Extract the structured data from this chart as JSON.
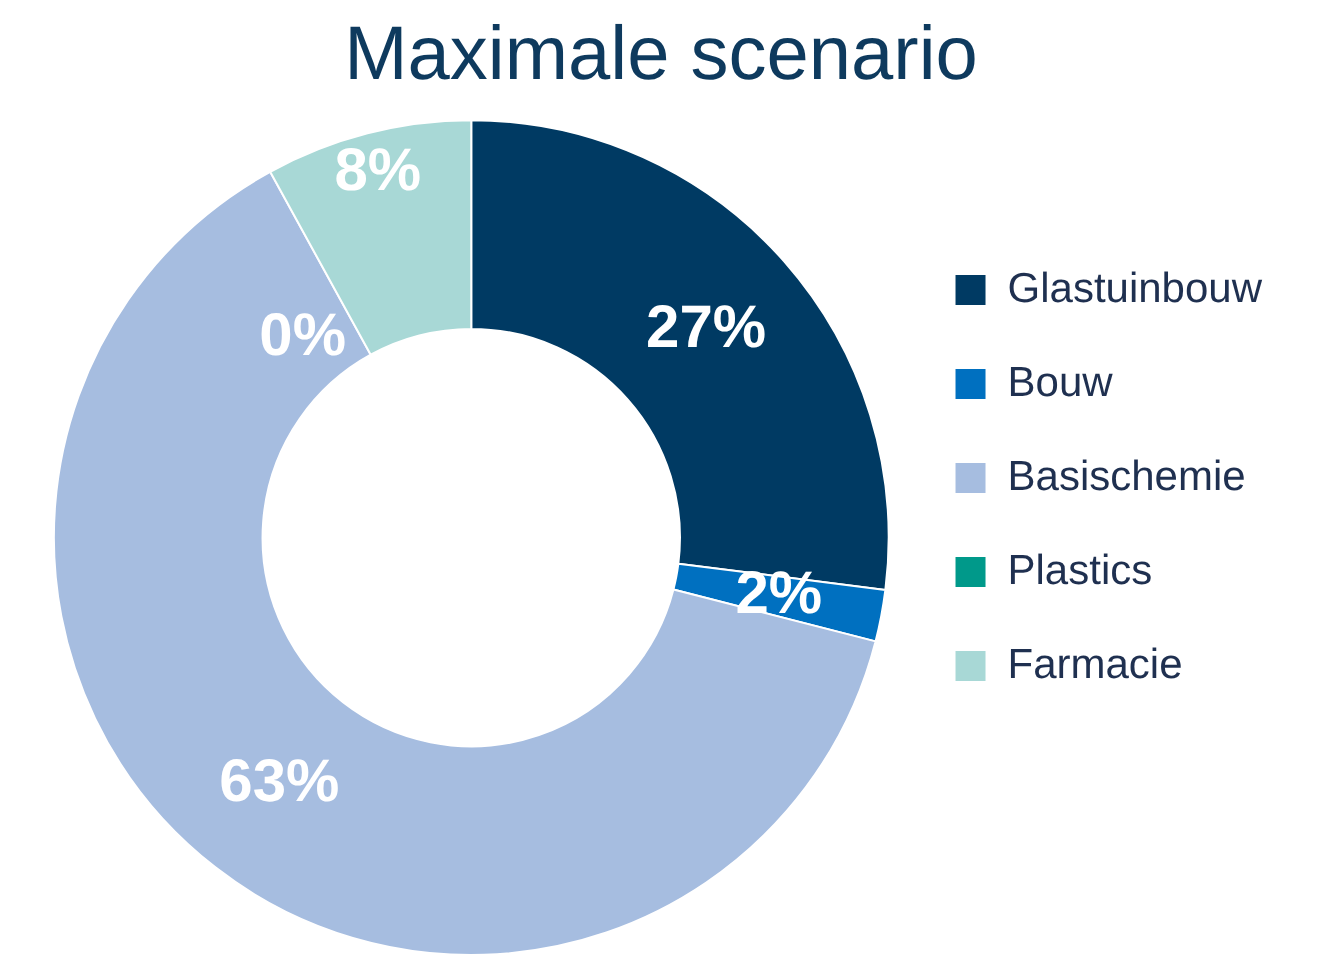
{
  "chart_data": {
    "type": "donut",
    "title": "Maximale scenario",
    "categories": [
      "Glastuinbouw",
      "Bouw",
      "Basischemie",
      "Plastics",
      "Farmacie"
    ],
    "values": [
      27,
      2,
      63,
      0,
      8
    ],
    "colors": [
      "#003a63",
      "#0070c0",
      "#a6bde0",
      "#00998a",
      "#a8d8d6"
    ],
    "value_labels": [
      "27%",
      "2%",
      "63%",
      "0%",
      "8%"
    ],
    "legend": "right"
  }
}
